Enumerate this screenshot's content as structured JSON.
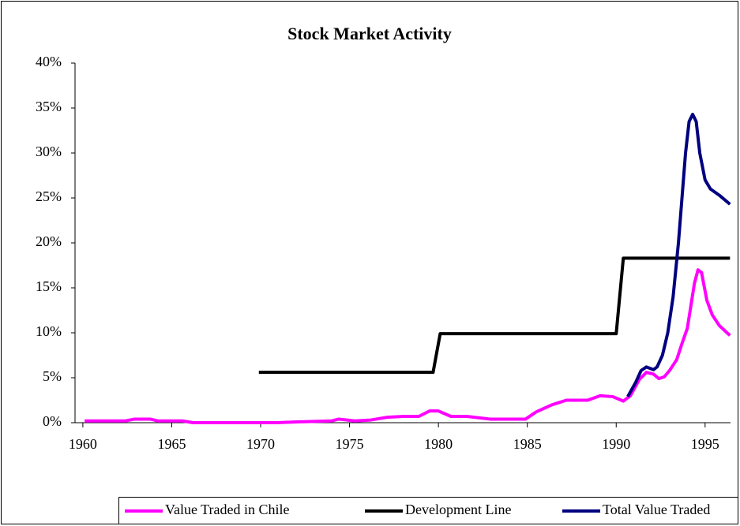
{
  "chart_data": {
    "type": "line",
    "title": "Stock Market Activity",
    "xlim": [
      1959.56,
      1996.43
    ],
    "xticks": [
      1960,
      1965,
      1970,
      1975,
      1980,
      1985,
      1990,
      1995
    ],
    "ylim": [
      0,
      40
    ],
    "yticks": [
      {
        "value": 0,
        "label": "0%"
      },
      {
        "value": 5,
        "label": "5%"
      },
      {
        "value": 10,
        "label": "10%"
      },
      {
        "value": 15,
        "label": "15%"
      },
      {
        "value": 20,
        "label": "20%"
      },
      {
        "value": 25,
        "label": "25%"
      },
      {
        "value": 30,
        "label": "30%"
      },
      {
        "value": 35,
        "label": "35%"
      },
      {
        "value": 40,
        "label": "40%"
      }
    ],
    "grid": false,
    "legend": "bottom",
    "series": [
      {
        "name": "Value Traded in Chile",
        "color": "#ff00ff",
        "x": [
          1960.1,
          1962.4,
          1962.9,
          1963.8,
          1964.2,
          1965.6,
          1966.2,
          1970.9,
          1972.2,
          1974.0,
          1974.4,
          1975.3,
          1976.2,
          1977.1,
          1978.0,
          1978.9,
          1979.5,
          1980.0,
          1980.7,
          1981.6,
          1982.9,
          1984.9,
          1985.5,
          1986.4,
          1987.2,
          1988.4,
          1989.1,
          1989.8,
          1990.4,
          1990.8,
          1991.3,
          1991.7,
          1992.1,
          1992.4,
          1992.7,
          1993.0,
          1993.4,
          1993.7,
          1994.0,
          1994.2,
          1994.4,
          1994.6,
          1994.8,
          1995.1,
          1995.4,
          1995.8,
          1996.4
        ],
        "values": [
          0.2,
          0.2,
          0.4,
          0.4,
          0.2,
          0.2,
          0,
          0,
          0.1,
          0.2,
          0.4,
          0.2,
          0.3,
          0.6,
          0.7,
          0.7,
          1.3,
          1.3,
          0.7,
          0.7,
          0.4,
          0.4,
          1.2,
          2,
          2.5,
          2.5,
          3,
          2.9,
          2.4,
          3,
          4.8,
          5.6,
          5.4,
          4.9,
          5.1,
          5.8,
          7,
          8.8,
          10.5,
          13,
          15.5,
          17,
          16.7,
          13.6,
          12,
          10.8,
          9.7
        ]
      },
      {
        "name": "Development Line",
        "color": "#000000",
        "x": [
          1969.9,
          1979.7,
          1980.1,
          1990.0,
          1990.4,
          1996.4
        ],
        "values": [
          5.6,
          5.6,
          9.9,
          9.9,
          18.3,
          18.3
        ]
      },
      {
        "name": "Total Value Traded",
        "color": "#000080",
        "x": [
          1990.65,
          1991.1,
          1991.4,
          1991.7,
          1992.1,
          1992.3,
          1992.6,
          1992.9,
          1993.2,
          1993.5,
          1993.7,
          1993.9,
          1994.1,
          1994.3,
          1994.5,
          1994.7,
          1995.0,
          1995.3,
          1995.8,
          1996.4
        ],
        "values": [
          2.9,
          4.5,
          5.8,
          6.2,
          5.9,
          6.2,
          7.5,
          10,
          14,
          20,
          25,
          30,
          33.5,
          34.3,
          33.5,
          30,
          27,
          26,
          25.3,
          24.3
        ]
      }
    ]
  }
}
